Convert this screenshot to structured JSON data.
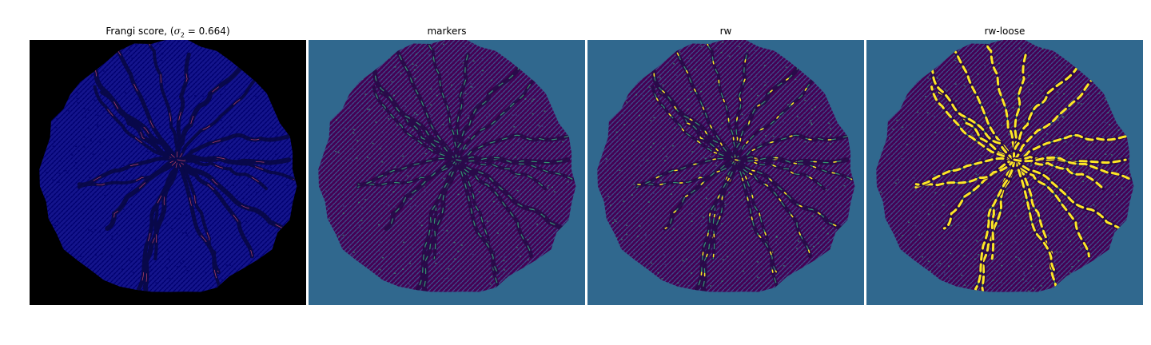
{
  "figure": {
    "panels": [
      {
        "id": "frangi",
        "title_prefix": "Frangi score, (",
        "title_sigma": "σ",
        "title_sub": "2",
        "title_suffix": " = 0.664)",
        "colors": {
          "background": "#000000",
          "mask": "#14148c",
          "texture": "#00006e",
          "vessel": "#08084a",
          "highlight": "#d04a6a"
        }
      },
      {
        "id": "markers",
        "title": "markers",
        "colors": {
          "background": "#30688e",
          "mask": "#440154",
          "texture": "#3e4a89",
          "vessel": "#2a0a4a",
          "highlight": "#35b779"
        }
      },
      {
        "id": "rw",
        "title": "rw",
        "colors": {
          "background": "#30688e",
          "mask": "#440154",
          "texture": "#3e4a89",
          "vessel": "#2a0a4a",
          "highlight": "#35b779",
          "accent": "#fde725"
        }
      },
      {
        "id": "rw-loose",
        "title": "rw-loose",
        "colors": {
          "background": "#30688e",
          "mask": "#440154",
          "texture": "#3e4a89",
          "vessel": "#2a0a4a",
          "highlight": "#35b779",
          "accent": "#fde725"
        }
      }
    ]
  }
}
